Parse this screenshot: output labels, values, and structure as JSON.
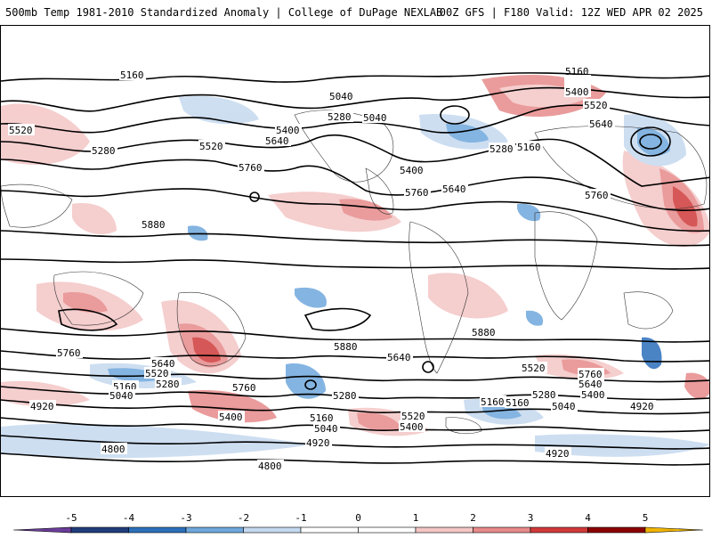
{
  "header": {
    "left_title": "500mb Temp 1981-2010 Standardized Anomaly | College of DuPage NEXLAB",
    "right_title": "00Z GFS | F180 Valid: 12Z WED APR 02 2025"
  },
  "colorbar": {
    "ticks": [
      "-5",
      "-4",
      "-3",
      "-2",
      "-1",
      "0",
      "1",
      "2",
      "3",
      "4",
      "5"
    ],
    "colors": [
      "#6a3d9a",
      "#1f3d7a",
      "#2c6fbb",
      "#6fa8dc",
      "#c5d9ef",
      "#ffffff",
      "#ffffff",
      "#f4c6c6",
      "#e78a8a",
      "#d03a3a",
      "#8b0000",
      "#f0b400"
    ]
  },
  "contour_labels": [
    "5160",
    "5040",
    "5400",
    "5520",
    "5280",
    "5640",
    "5760",
    "5880",
    "5160",
    "5040",
    "5400",
    "5520",
    "5280",
    "5640",
    "5760",
    "5880",
    "5160",
    "5280",
    "5640",
    "5760",
    "5520",
    "5400",
    "5880",
    "5880",
    "5760",
    "5640",
    "5520",
    "5280",
    "5160",
    "5040",
    "4920",
    "5760",
    "5640",
    "5880",
    "5400",
    "5280",
    "5160",
    "5040",
    "4920",
    "4800",
    "5520",
    "5400",
    "5280",
    "5160",
    "5040",
    "4920",
    "4800",
    "5760",
    "5640",
    "5520",
    "5400",
    "5280",
    "5160",
    "5040",
    "4920"
  ]
}
